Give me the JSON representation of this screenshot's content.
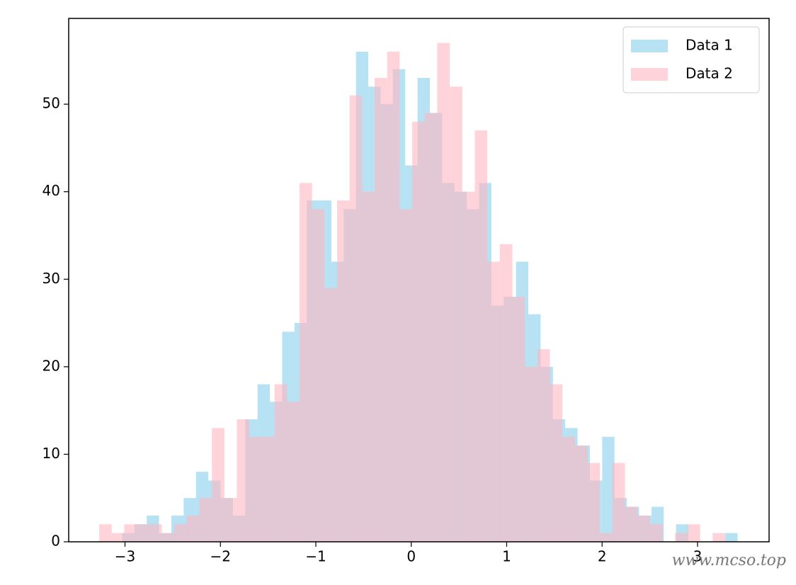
{
  "chart_data": {
    "type": "histogram",
    "xlim": [
      -3.59,
      3.75
    ],
    "ylim": [
      0,
      59.8
    ],
    "xticks": [
      {
        "value": -3,
        "label": "−3"
      },
      {
        "value": -2,
        "label": "−2"
      },
      {
        "value": -1,
        "label": "−1"
      },
      0,
      1,
      2,
      3
    ],
    "yticks": [
      0,
      10,
      20,
      30,
      40,
      50
    ],
    "legend": "upper right",
    "alpha": 0.6,
    "watermark": "www.mcso.top",
    "series": [
      {
        "name": "Data 1",
        "color": "#87ceeb",
        "bins": [
          -3.03,
          -2.901,
          -2.772,
          -2.643,
          -2.514,
          -2.385,
          -2.256,
          -2.127,
          -1.998,
          -1.869,
          -1.74,
          -1.611,
          -1.482,
          -1.353,
          -1.224,
          -1.095,
          -0.966,
          -0.837,
          -0.708,
          -0.579,
          -0.45,
          -0.321,
          -0.192,
          -0.063,
          0.066,
          0.195,
          0.324,
          0.453,
          0.582,
          0.711,
          0.84,
          0.969,
          1.098,
          1.227,
          1.356,
          1.485,
          1.614,
          1.743,
          1.872,
          2.001,
          2.13,
          2.259,
          2.388,
          2.517,
          2.646,
          2.775,
          2.904,
          3.033,
          3.162,
          3.291,
          3.42
        ],
        "values": [
          1,
          2,
          3,
          1,
          3,
          5,
          8,
          7,
          5,
          3,
          14,
          18,
          16,
          24,
          25,
          39,
          39,
          32,
          38,
          56,
          52,
          50,
          54,
          43,
          53,
          49,
          41,
          40,
          38,
          41,
          27,
          28,
          32,
          26,
          20,
          14,
          13,
          11,
          7,
          12,
          5,
          4,
          3,
          4,
          0,
          2,
          0,
          0,
          0,
          1
        ]
      },
      {
        "name": "Data 2",
        "color": "#ffb6c1",
        "bins": [
          -3.27,
          -3.139,
          -3.008,
          -2.876,
          -2.745,
          -2.614,
          -2.483,
          -2.352,
          -2.22,
          -2.089,
          -1.958,
          -1.827,
          -1.696,
          -1.564,
          -1.433,
          -1.302,
          -1.171,
          -1.04,
          -0.908,
          -0.777,
          -0.646,
          -0.515,
          -0.384,
          -0.252,
          -0.121,
          0.01,
          0.141,
          0.272,
          0.404,
          0.535,
          0.666,
          0.797,
          0.928,
          1.06,
          1.191,
          1.322,
          1.453,
          1.584,
          1.716,
          1.847,
          1.978,
          2.109,
          2.24,
          2.372,
          2.503,
          2.634,
          2.765,
          2.896,
          3.028,
          3.159,
          3.29
        ],
        "values": [
          2,
          1,
          2,
          2,
          2,
          1,
          2,
          3,
          5,
          13,
          5,
          14,
          12,
          12,
          18,
          16,
          41,
          38,
          29,
          39,
          51,
          40,
          53,
          56,
          38,
          48,
          49,
          57,
          52,
          40,
          47,
          32,
          34,
          28,
          20,
          22,
          18,
          12,
          11,
          9,
          1,
          9,
          4,
          3,
          2,
          0,
          1,
          2,
          0,
          1
        ]
      }
    ]
  }
}
